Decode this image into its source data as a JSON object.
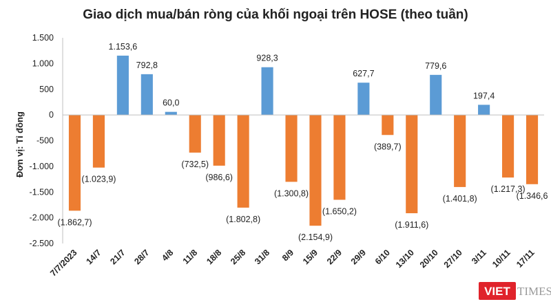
{
  "chart_data": {
    "type": "bar",
    "title": "Giao dịch mua/bán ròng của khối ngoại trên HOSE (theo tuần)",
    "ylabel": "Đơn vị: Tỉ đồng",
    "xlabel": "",
    "ylim": [
      -2500,
      1500
    ],
    "yticks": [
      1500,
      1000,
      500,
      0,
      -500,
      -1000,
      -1500,
      -2000,
      -2500
    ],
    "ytick_labels": [
      "1.500",
      "1.000",
      "500",
      "0",
      "-500",
      "-1.000",
      "-1.500",
      "-2.000",
      "-2.500"
    ],
    "grid": false,
    "legend": "none",
    "categories": [
      "7/7/2023",
      "14/7",
      "21/7",
      "28/7",
      "4/8",
      "11/8",
      "18/8",
      "25/8",
      "31/8",
      "8/9",
      "15/9",
      "22/9",
      "29/9",
      "6/10",
      "13/10",
      "20/10",
      "27/10",
      "3/11",
      "10/11",
      "17/11"
    ],
    "values": [
      -1862.7,
      -1023.9,
      1153.6,
      792.8,
      60.0,
      -732.5,
      -986.6,
      -1802.8,
      928.3,
      -1300.8,
      -2154.9,
      -1650.2,
      627.7,
      -389.7,
      -1911.6,
      779.6,
      -1401.8,
      197.4,
      -1217.3,
      -1346.6
    ],
    "labels": [
      "(1.862,7)",
      "(1.023,9)",
      "1.153,6",
      "792,8",
      "60,0",
      "(732,5)",
      "(986,6)",
      "(1.802,8)",
      "928,3",
      "(1.300,8)",
      "(2.154,9)",
      "(1.650,2)",
      "627,7",
      "(389,7)",
      "(1.911,6)",
      "779,6",
      "(1.401,8)",
      "197,4",
      "(1.217,3)",
      "(1.346,6"
    ],
    "colors": {
      "positive": "#5b9bd5",
      "negative": "#ed7d31"
    }
  },
  "watermark": {
    "part1": "VIET",
    "part2": "TIMES",
    "colors": {
      "badge": "#e0232b",
      "text": "#9a9a9a"
    }
  }
}
